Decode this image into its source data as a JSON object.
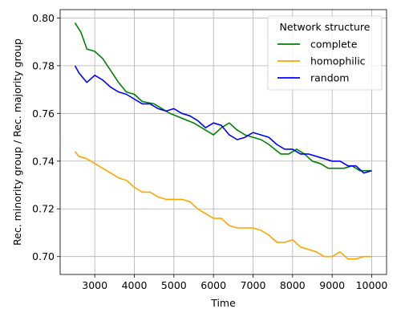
{
  "chart_data": {
    "type": "line",
    "xlabel": "Time",
    "ylabel": "Rec. minority group / Rec. majority group",
    "xlim": [
      2125,
      10375
    ],
    "ylim": [
      0.6925,
      0.8035
    ],
    "x_ticks": [
      3000,
      4000,
      5000,
      6000,
      7000,
      8000,
      9000,
      10000
    ],
    "y_ticks": [
      0.7,
      0.72,
      0.74,
      0.76,
      0.78,
      0.8
    ],
    "x_tick_labels": [
      "3000",
      "4000",
      "5000",
      "6000",
      "7000",
      "8000",
      "9000",
      "10000"
    ],
    "y_tick_labels": [
      "0.70",
      "0.72",
      "0.74",
      "0.76",
      "0.78",
      "0.80"
    ],
    "grid": true,
    "legend": {
      "title": "Network structure",
      "placement": "upper right"
    },
    "series": [
      {
        "name": "complete",
        "color": "#008000",
        "points": [
          [
            2500,
            0.798
          ],
          [
            2650,
            0.794
          ],
          [
            2800,
            0.787
          ],
          [
            3000,
            0.786
          ],
          [
            3200,
            0.783
          ],
          [
            3400,
            0.778
          ],
          [
            3600,
            0.773
          ],
          [
            3800,
            0.769
          ],
          [
            4000,
            0.768
          ],
          [
            4200,
            0.765
          ],
          [
            4500,
            0.764
          ],
          [
            4700,
            0.762
          ],
          [
            4900,
            0.76
          ],
          [
            5200,
            0.758
          ],
          [
            5500,
            0.756
          ],
          [
            5800,
            0.753
          ],
          [
            6000,
            0.751
          ],
          [
            6200,
            0.754
          ],
          [
            6400,
            0.756
          ],
          [
            6600,
            0.753
          ],
          [
            6800,
            0.751
          ],
          [
            7000,
            0.75
          ],
          [
            7200,
            0.749
          ],
          [
            7400,
            0.747
          ],
          [
            7700,
            0.743
          ],
          [
            7900,
            0.743
          ],
          [
            8100,
            0.745
          ],
          [
            8300,
            0.743
          ],
          [
            8500,
            0.74
          ],
          [
            8700,
            0.739
          ],
          [
            8900,
            0.737
          ],
          [
            9100,
            0.737
          ],
          [
            9300,
            0.737
          ],
          [
            9500,
            0.738
          ],
          [
            9700,
            0.736
          ],
          [
            9850,
            0.736
          ],
          [
            10000,
            0.736
          ]
        ]
      },
      {
        "name": "homophilic",
        "color": "#FFA500",
        "points": [
          [
            2500,
            0.744
          ],
          [
            2600,
            0.742
          ],
          [
            2800,
            0.741
          ],
          [
            3000,
            0.739
          ],
          [
            3200,
            0.737
          ],
          [
            3400,
            0.735
          ],
          [
            3600,
            0.733
          ],
          [
            3800,
            0.732
          ],
          [
            4000,
            0.729
          ],
          [
            4200,
            0.727
          ],
          [
            4400,
            0.727
          ],
          [
            4600,
            0.725
          ],
          [
            4800,
            0.724
          ],
          [
            5000,
            0.724
          ],
          [
            5200,
            0.724
          ],
          [
            5400,
            0.723
          ],
          [
            5600,
            0.72
          ],
          [
            5800,
            0.718
          ],
          [
            6000,
            0.716
          ],
          [
            6200,
            0.716
          ],
          [
            6400,
            0.713
          ],
          [
            6600,
            0.712
          ],
          [
            6800,
            0.712
          ],
          [
            7000,
            0.712
          ],
          [
            7200,
            0.711
          ],
          [
            7400,
            0.709
          ],
          [
            7600,
            0.706
          ],
          [
            7800,
            0.706
          ],
          [
            8000,
            0.707
          ],
          [
            8200,
            0.704
          ],
          [
            8400,
            0.703
          ],
          [
            8600,
            0.702
          ],
          [
            8800,
            0.7
          ],
          [
            9000,
            0.7
          ],
          [
            9200,
            0.702
          ],
          [
            9400,
            0.699
          ],
          [
            9600,
            0.699
          ],
          [
            9800,
            0.7
          ],
          [
            10000,
            0.7
          ]
        ]
      },
      {
        "name": "random",
        "color": "#0000FF",
        "points": [
          [
            2500,
            0.78
          ],
          [
            2600,
            0.777
          ],
          [
            2800,
            0.773
          ],
          [
            3000,
            0.776
          ],
          [
            3200,
            0.774
          ],
          [
            3400,
            0.771
          ],
          [
            3600,
            0.769
          ],
          [
            3800,
            0.768
          ],
          [
            4000,
            0.766
          ],
          [
            4200,
            0.764
          ],
          [
            4400,
            0.764
          ],
          [
            4600,
            0.762
          ],
          [
            4800,
            0.761
          ],
          [
            5000,
            0.762
          ],
          [
            5200,
            0.76
          ],
          [
            5400,
            0.759
          ],
          [
            5600,
            0.757
          ],
          [
            5800,
            0.754
          ],
          [
            6000,
            0.756
          ],
          [
            6200,
            0.755
          ],
          [
            6400,
            0.751
          ],
          [
            6600,
            0.749
          ],
          [
            6800,
            0.75
          ],
          [
            7000,
            0.752
          ],
          [
            7200,
            0.751
          ],
          [
            7400,
            0.75
          ],
          [
            7600,
            0.747
          ],
          [
            7800,
            0.745
          ],
          [
            8000,
            0.745
          ],
          [
            8200,
            0.743
          ],
          [
            8400,
            0.743
          ],
          [
            8600,
            0.742
          ],
          [
            8800,
            0.741
          ],
          [
            9000,
            0.74
          ],
          [
            9200,
            0.74
          ],
          [
            9400,
            0.738
          ],
          [
            9600,
            0.738
          ],
          [
            9800,
            0.735
          ],
          [
            10000,
            0.736
          ]
        ]
      }
    ]
  }
}
